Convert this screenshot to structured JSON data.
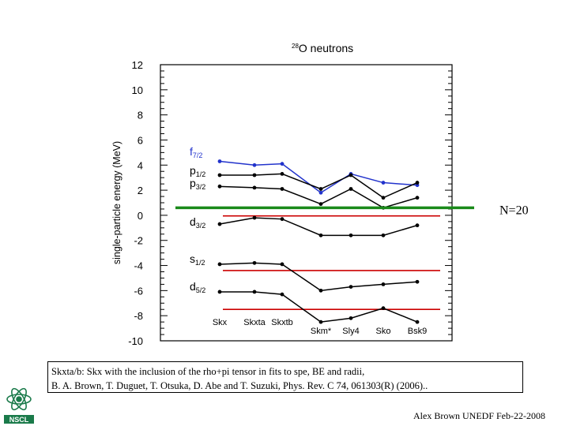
{
  "chart_data": {
    "type": "line",
    "title": "28O neutrons",
    "title_sup": "28",
    "title_rest": "O neutrons",
    "ylabel": "single-particle energy (MeV)",
    "ylim": [
      -10,
      12
    ],
    "yticks": [
      -10,
      -8,
      -6,
      -4,
      -2,
      0,
      2,
      4,
      6,
      8,
      10,
      12
    ],
    "categories": [
      "Skx",
      "Skxta",
      "Skxtb",
      "Skm*",
      "Sly4",
      "Sko",
      "Bsk9"
    ],
    "series": [
      {
        "name": "f7/2",
        "label_main": "f",
        "label_sub": "7/2",
        "color": "#2233cc",
        "values": [
          4.3,
          4.0,
          4.1,
          1.8,
          3.3,
          2.6,
          2.4
        ]
      },
      {
        "name": "p1/2",
        "label_main": "p",
        "label_sub": "1/2",
        "color": "#000000",
        "values": [
          3.2,
          3.2,
          3.3,
          2.1,
          3.2,
          1.4,
          2.6
        ]
      },
      {
        "name": "p3/2",
        "label_main": "p",
        "label_sub": "3/2",
        "color": "#000000",
        "values": [
          2.3,
          2.2,
          2.1,
          0.9,
          2.1,
          0.6,
          1.4
        ]
      },
      {
        "name": "d3/2",
        "label_main": "d",
        "label_sub": "3/2",
        "color": "#000000",
        "values": [
          -0.7,
          -0.2,
          -0.3,
          -1.6,
          -1.6,
          -1.6,
          -0.8
        ]
      },
      {
        "name": "s1/2",
        "label_main": "s",
        "label_sub": "1/2",
        "color": "#000000",
        "values": [
          -3.9,
          -3.8,
          -3.9,
          -6.0,
          -5.7,
          -5.5,
          -5.3
        ]
      },
      {
        "name": "d5/2",
        "label_main": "d",
        "label_sub": "5/2",
        "color": "#000000",
        "values": [
          -6.1,
          -6.1,
          -6.3,
          -8.5,
          -8.2,
          -7.4,
          -8.5
        ]
      }
    ],
    "reference_lines": [
      {
        "y": -0.05,
        "color": "#cc0000"
      },
      {
        "y": -4.4,
        "color": "#cc0000"
      },
      {
        "y": -7.5,
        "color": "#cc0000"
      }
    ],
    "n20_line": {
      "y": 0.6,
      "color": "#1a8a1a",
      "label": "N=20"
    }
  },
  "caption": {
    "line1": "Skxta/b: Skx with the inclusion of the rho+pi tensor in fits to spe, BE and radii,",
    "line2": "B. A. Brown, T. Duguet, T. Otsuka, D. Abe and T. Suzuki, Phys. Rev. C 74, 061303(R) (2006).."
  },
  "credit": "Alex Brown UNEDF Feb-22-2008",
  "logo": {
    "text": "NSCL",
    "color": "#1a7a4a"
  }
}
